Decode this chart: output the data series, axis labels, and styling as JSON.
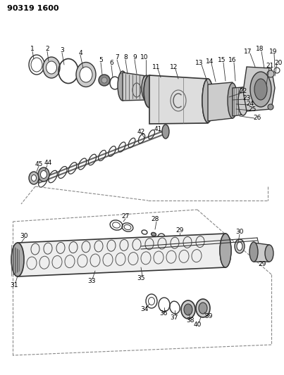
{
  "title": "90319 1600",
  "bg_color": "#ffffff",
  "fig_width": 4.03,
  "fig_height": 5.33,
  "dpi": 100,
  "gray_dark": "#555555",
  "gray_mid": "#888888",
  "gray_light": "#bbbbbb",
  "gray_lighter": "#dddddd",
  "line_color": "#333333"
}
